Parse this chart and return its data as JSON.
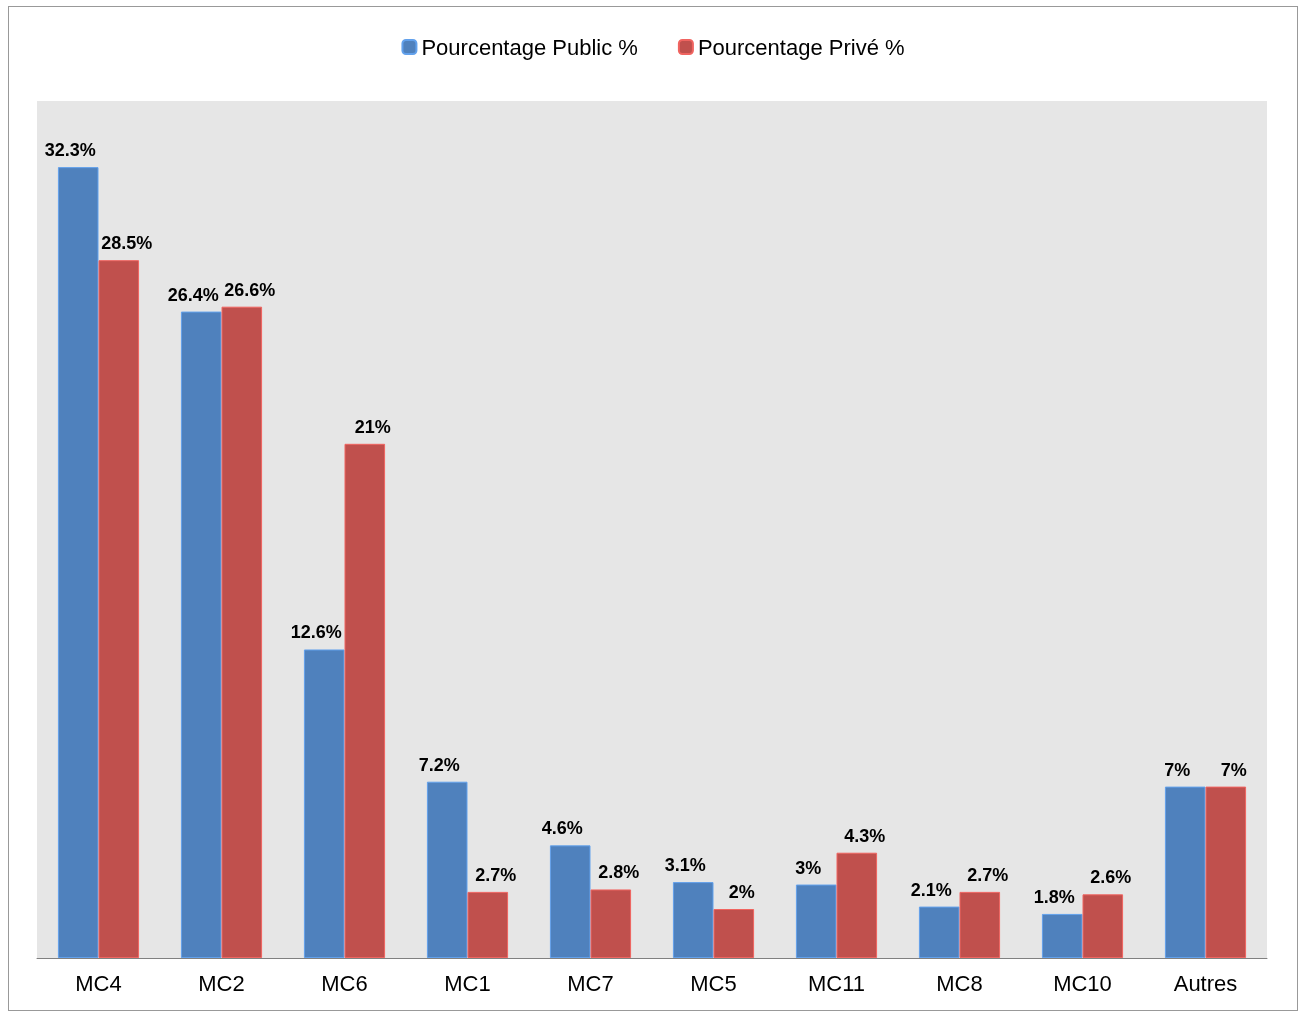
{
  "chart_data": {
    "type": "bar",
    "categories": [
      "MC4",
      "MC2",
      "MC6",
      "MC1",
      "MC7",
      "MC5",
      "MC11",
      "MC8",
      "MC10",
      "Autres"
    ],
    "series": [
      {
        "name": "Pourcentage Public %",
        "color": "#4f81bd",
        "values": [
          32.3,
          26.4,
          12.6,
          7.2,
          4.6,
          3.1,
          3,
          2.1,
          1.8,
          7
        ],
        "value_labels": [
          "32.3%",
          "26.4%",
          "12.6%",
          "7.2%",
          "4.6%",
          "3.1%",
          "3%",
          "2.1%",
          "1.8%",
          "7%"
        ]
      },
      {
        "name": "Pourcentage Privé %",
        "color": "#c0504d",
        "values": [
          28.5,
          26.6,
          21,
          2.7,
          2.8,
          2,
          4.3,
          2.7,
          2.6,
          7
        ],
        "value_labels": [
          "28.5%",
          "26.6%",
          "21%",
          "2.7%",
          "2.8%",
          "2%",
          "4.3%",
          "2.7%",
          "2.6%",
          "7%"
        ]
      }
    ],
    "legend": "top",
    "tick_labels": "x"
  }
}
